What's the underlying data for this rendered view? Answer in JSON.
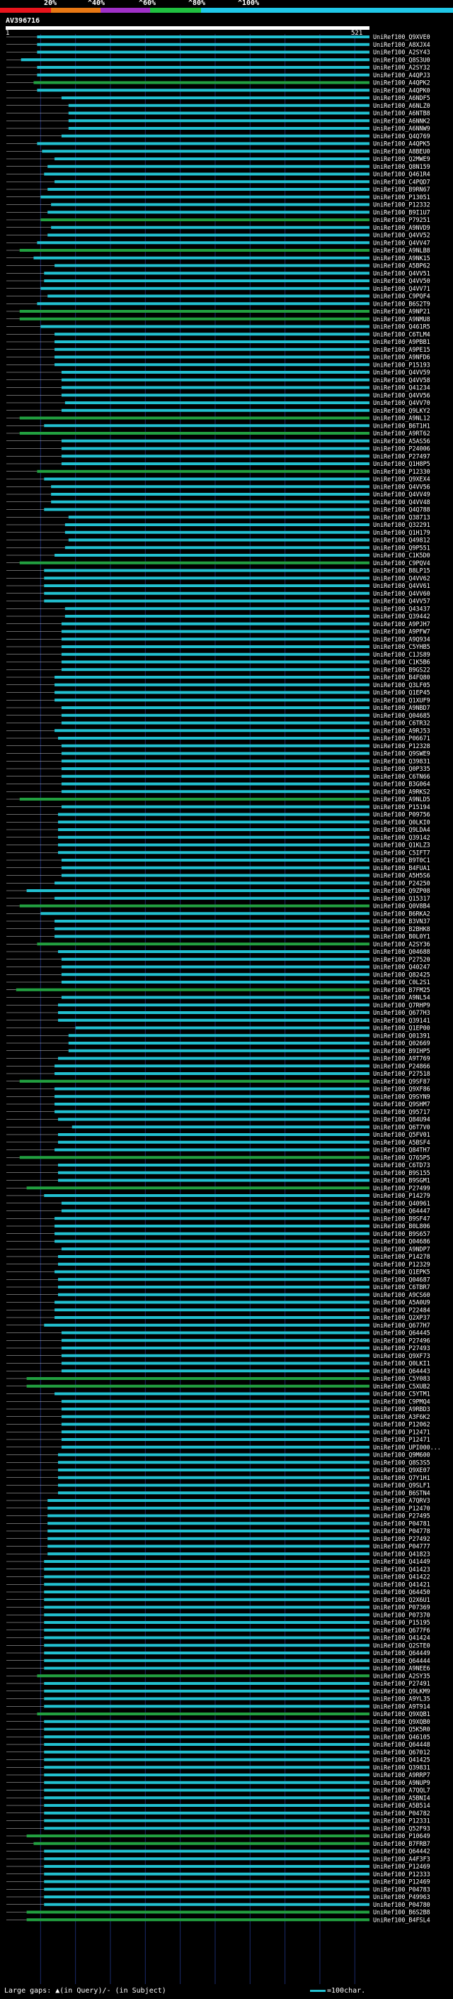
{
  "legend": {
    "labels": [
      "20%",
      "^40%",
      "^60%",
      "^80%",
      "^100%"
    ],
    "colors": [
      "#e8141c",
      "#e87814",
      "#a030c8",
      "#20c040",
      "#20c8e8"
    ]
  },
  "query": {
    "title": "AV396716",
    "start": "1",
    "end": "521",
    "length": 521
  },
  "colors": {
    "high": "#22c0d0",
    "mid": "#22a040",
    "line": "#d0d0d0",
    "text": "#ffffff"
  },
  "hits": [
    [
      "UniRef100_Q9XVE0",
      45,
      521,
      "c"
    ],
    [
      "UniRef100_A8XJX4",
      45,
      521,
      "c"
    ],
    [
      "UniRef100_A2SY43",
      45,
      521,
      "c"
    ],
    [
      "UniRef100_Q8S3U0",
      22,
      521,
      "c"
    ],
    [
      "UniRef100_A2SY32",
      45,
      521,
      "c"
    ],
    [
      "UniRef100_A4QPJ3",
      45,
      521,
      "c"
    ],
    [
      "UniRef100_A4QPK2",
      40,
      521,
      "g"
    ],
    [
      "UniRef100_A4QPK0",
      45,
      521,
      "c"
    ],
    [
      "UniRef100_A6NDF5",
      80,
      521,
      "c"
    ],
    [
      "UniRef100_A6NLZ0",
      90,
      521,
      "c"
    ],
    [
      "UniRef100_A6NTB8",
      90,
      521,
      "c"
    ],
    [
      "UniRef100_A6NNK2",
      90,
      521,
      "c"
    ],
    [
      "UniRef100_A6NNW9",
      90,
      521,
      "c"
    ],
    [
      "UniRef100_Q4Q769",
      80,
      521,
      "c"
    ],
    [
      "UniRef100_A4QPK5",
      45,
      521,
      "c"
    ],
    [
      "UniRef100_A8BEU0",
      52,
      521,
      "c"
    ],
    [
      "UniRef100_Q2MWE9",
      70,
      521,
      "c"
    ],
    [
      "UniRef100_Q8N159",
      60,
      521,
      "c"
    ],
    [
      "UniRef100_Q461R4",
      55,
      521,
      "c"
    ],
    [
      "UniRef100_C4PQD7",
      70,
      521,
      "c"
    ],
    [
      "UniRef100_B9RN67",
      60,
      521,
      "c"
    ],
    [
      "UniRef100_P13051",
      50,
      521,
      "c"
    ],
    [
      "UniRef100_P12332",
      65,
      521,
      "c"
    ],
    [
      "UniRef100_B9I1U7",
      60,
      521,
      "c"
    ],
    [
      "UniRef100_P79251",
      50,
      521,
      "g"
    ],
    [
      "UniRef100_A9NVD9",
      65,
      521,
      "c"
    ],
    [
      "UniRef100_Q4VV52",
      60,
      521,
      "c"
    ],
    [
      "UniRef100_Q4VV47",
      45,
      521,
      "c"
    ],
    [
      "UniRef100_A9NLB8",
      20,
      521,
      "g"
    ],
    [
      "UniRef100_A9NK15",
      40,
      521,
      "c"
    ],
    [
      "UniRef100_A5BP62",
      70,
      521,
      "c"
    ],
    [
      "UniRef100_Q4VV51",
      55,
      521,
      "c"
    ],
    [
      "UniRef100_Q4VV50",
      55,
      521,
      "c"
    ],
    [
      "UniRef100_Q4VV71",
      50,
      521,
      "c"
    ],
    [
      "UniRef100_C9PQF4",
      60,
      521,
      "c"
    ],
    [
      "UniRef100_B6S2T9",
      45,
      521,
      "c"
    ],
    [
      "UniRef100_A9NP21",
      20,
      521,
      "g"
    ],
    [
      "UniRef100_A9NMU8",
      20,
      521,
      "g"
    ],
    [
      "UniRef100_Q461R5",
      50,
      521,
      "c"
    ],
    [
      "UniRef100_C6TLM4",
      70,
      521,
      "c"
    ],
    [
      "UniRef100_A9PBB1",
      70,
      521,
      "c"
    ],
    [
      "UniRef100_A9PE15",
      70,
      521,
      "c"
    ],
    [
      "UniRef100_A9NFD6",
      70,
      521,
      "c"
    ],
    [
      "UniRef100_P15193",
      70,
      521,
      "c"
    ],
    [
      "UniRef100_Q4VV59",
      80,
      521,
      "c"
    ],
    [
      "UniRef100_Q4VV58",
      80,
      521,
      "c"
    ],
    [
      "UniRef100_Q41234",
      80,
      521,
      "c"
    ],
    [
      "UniRef100_Q4VV56",
      80,
      521,
      "c"
    ],
    [
      "UniRef100_Q4VV70",
      85,
      521,
      "c"
    ],
    [
      "UniRef100_Q9LKY2",
      80,
      521,
      "c"
    ],
    [
      "UniRef100_A9NL12",
      20,
      521,
      "g"
    ],
    [
      "UniRef100_B6T1H1",
      55,
      521,
      "c"
    ],
    [
      "UniRef100_A9RT62",
      20,
      521,
      "g"
    ],
    [
      "UniRef100_A5AS56",
      80,
      521,
      "c"
    ],
    [
      "UniRef100_P24006",
      80,
      521,
      "c"
    ],
    [
      "UniRef100_P27497",
      80,
      521,
      "c"
    ],
    [
      "UniRef100_Q1H8P5",
      80,
      521,
      "c"
    ],
    [
      "UniRef100_P12330",
      45,
      521,
      "g"
    ],
    [
      "UniRef100_Q9XEX4",
      55,
      521,
      "c"
    ],
    [
      "UniRef100_Q4VV56",
      65,
      521,
      "c"
    ],
    [
      "UniRef100_Q4VV49",
      65,
      521,
      "c"
    ],
    [
      "UniRef100_Q4VV48",
      65,
      521,
      "c"
    ],
    [
      "UniRef100_Q4Q788",
      55,
      521,
      "c"
    ],
    [
      "UniRef100_Q38713",
      90,
      521,
      "c"
    ],
    [
      "UniRef100_Q32291",
      85,
      521,
      "c"
    ],
    [
      "UniRef100_Q1H179",
      85,
      521,
      "c"
    ],
    [
      "UniRef100_Q49812",
      90,
      521,
      "c"
    ],
    [
      "UniRef100_Q9P551",
      85,
      521,
      "c"
    ],
    [
      "UniRef100_C1K5D0",
      70,
      521,
      "c"
    ],
    [
      "UniRef100_C9PQV4",
      20,
      521,
      "g"
    ],
    [
      "UniRef100_B8LP15",
      55,
      521,
      "c"
    ],
    [
      "UniRef100_Q4VV62",
      55,
      521,
      "c"
    ],
    [
      "UniRef100_Q4VV61",
      55,
      521,
      "c"
    ],
    [
      "UniRef100_Q4VV60",
      55,
      521,
      "c"
    ],
    [
      "UniRef100_Q4VV57",
      55,
      521,
      "c"
    ],
    [
      "UniRef100_Q43437",
      85,
      521,
      "c"
    ],
    [
      "UniRef100_Q39442",
      85,
      521,
      "c"
    ],
    [
      "UniRef100_A9PJH7",
      80,
      521,
      "c"
    ],
    [
      "UniRef100_A9PFW7",
      80,
      521,
      "c"
    ],
    [
      "UniRef100_A9Q934",
      80,
      521,
      "c"
    ],
    [
      "UniRef100_C5YHB5",
      80,
      521,
      "c"
    ],
    [
      "UniRef100_C1JS89",
      80,
      521,
      "c"
    ],
    [
      "UniRef100_C1K5B6",
      80,
      521,
      "c"
    ],
    [
      "UniRef100_B9GS22",
      80,
      521,
      "c"
    ],
    [
      "UniRef100_B4FQ80",
      70,
      521,
      "c"
    ],
    [
      "UniRef100_Q3LF05",
      70,
      521,
      "c"
    ],
    [
      "UniRef100_Q1EP45",
      70,
      521,
      "c"
    ],
    [
      "UniRef100_Q1XUF9",
      70,
      521,
      "c"
    ],
    [
      "UniRef100_A9NBD7",
      80,
      521,
      "c"
    ],
    [
      "UniRef100_Q04685",
      80,
      521,
      "c"
    ],
    [
      "UniRef100_C6TR32",
      80,
      521,
      "c"
    ],
    [
      "UniRef100_A9RJ53",
      70,
      521,
      "c"
    ],
    [
      "UniRef100_P06671",
      75,
      521,
      "c"
    ],
    [
      "UniRef100_P12328",
      80,
      521,
      "c"
    ],
    [
      "UniRef100_Q9SWE9",
      80,
      521,
      "c"
    ],
    [
      "UniRef100_Q39831",
      80,
      521,
      "c"
    ],
    [
      "UniRef100_Q0P335",
      80,
      521,
      "c"
    ],
    [
      "UniRef100_C6TN66",
      80,
      521,
      "c"
    ],
    [
      "UniRef100_B3G064",
      80,
      521,
      "c"
    ],
    [
      "UniRef100_A9RKS2",
      80,
      521,
      "c"
    ],
    [
      "UniRef100_A9NLD5",
      20,
      521,
      "g"
    ],
    [
      "UniRef100_P15194",
      80,
      521,
      "c"
    ],
    [
      "UniRef100_P09756",
      75,
      521,
      "c"
    ],
    [
      "UniRef100_Q0LKI0",
      75,
      521,
      "c"
    ],
    [
      "UniRef100_Q9LDA4",
      75,
      521,
      "c"
    ],
    [
      "UniRef100_Q39142",
      75,
      521,
      "c"
    ],
    [
      "UniRef100_Q1KLZ3",
      75,
      521,
      "c"
    ],
    [
      "UniRef100_C5IFT7",
      75,
      521,
      "c"
    ],
    [
      "UniRef100_B9T0C1",
      80,
      521,
      "c"
    ],
    [
      "UniRef100_B4FUA1",
      80,
      521,
      "c"
    ],
    [
      "UniRef100_A5H5S6",
      80,
      521,
      "c"
    ],
    [
      "UniRef100_P24250",
      70,
      521,
      "c"
    ],
    [
      "UniRef100_Q9ZP08",
      30,
      521,
      "c"
    ],
    [
      "UniRef100_Q15317",
      70,
      521,
      "c"
    ],
    [
      "UniRef100_Q0V8B4",
      20,
      521,
      "g"
    ],
    [
      "UniRef100_B6RKA2",
      50,
      521,
      "c"
    ],
    [
      "UniRef100_B3VN37",
      70,
      521,
      "c"
    ],
    [
      "UniRef100_B2BHK8",
      70,
      521,
      "c"
    ],
    [
      "UniRef100_B0L0Y1",
      70,
      521,
      "c"
    ],
    [
      "UniRef100_A2SY36",
      45,
      521,
      "g"
    ],
    [
      "UniRef100_Q04688",
      75,
      521,
      "c"
    ],
    [
      "UniRef100_P27520",
      80,
      521,
      "c"
    ],
    [
      "UniRef100_Q40247",
      80,
      521,
      "c"
    ],
    [
      "UniRef100_Q82425",
      80,
      521,
      "c"
    ],
    [
      "UniRef100_C0L2S1",
      80,
      521,
      "c"
    ],
    [
      "UniRef100_B7FM25",
      15,
      521,
      "g"
    ],
    [
      "UniRef100_A9NL54",
      80,
      521,
      "c"
    ],
    [
      "UniRef100_Q7RHP9",
      75,
      521,
      "c"
    ],
    [
      "UniRef100_Q677H3",
      75,
      521,
      "c"
    ],
    [
      "UniRef100_Q39141",
      75,
      521,
      "c"
    ],
    [
      "UniRef100_Q1EP00",
      100,
      521,
      "c"
    ],
    [
      "UniRef100_Q01391",
      90,
      521,
      "c"
    ],
    [
      "UniRef100_Q02669",
      90,
      521,
      "c"
    ],
    [
      "UniRef100_B9IHP5",
      90,
      521,
      "c"
    ],
    [
      "UniRef100_A9T769",
      75,
      521,
      "c"
    ],
    [
      "UniRef100_P24866",
      70,
      521,
      "c"
    ],
    [
      "UniRef100_P27518",
      70,
      521,
      "c"
    ],
    [
      "UniRef100_Q9SF87",
      20,
      521,
      "g"
    ],
    [
      "UniRef100_Q9XF86",
      70,
      521,
      "c"
    ],
    [
      "UniRef100_Q9SYN9",
      70,
      521,
      "c"
    ],
    [
      "UniRef100_Q9SHM7",
      70,
      521,
      "c"
    ],
    [
      "UniRef100_Q95717",
      70,
      521,
      "c"
    ],
    [
      "UniRef100_Q84U94",
      75,
      521,
      "c"
    ],
    [
      "UniRef100_Q6T7V0",
      95,
      521,
      "c"
    ],
    [
      "UniRef100_Q5FV01",
      75,
      521,
      "c"
    ],
    [
      "UniRef100_A5BSF4",
      75,
      521,
      "c"
    ],
    [
      "UniRef100_Q84TH7",
      70,
      521,
      "c"
    ],
    [
      "UniRef100_Q765P5",
      20,
      521,
      "g"
    ],
    [
      "UniRef100_C6TD73",
      75,
      521,
      "c"
    ],
    [
      "UniRef100_B9S155",
      75,
      521,
      "c"
    ],
    [
      "UniRef100_B9SGM1",
      75,
      521,
      "c"
    ],
    [
      "UniRef100_P27499",
      30,
      521,
      "g"
    ],
    [
      "UniRef100_P14279",
      55,
      521,
      "c"
    ],
    [
      "UniRef100_Q40961",
      80,
      521,
      "c"
    ],
    [
      "UniRef100_Q64447",
      80,
      521,
      "c"
    ],
    [
      "UniRef100_B9SF47",
      70,
      521,
      "c"
    ],
    [
      "UniRef100_B0L806",
      70,
      521,
      "c"
    ],
    [
      "UniRef100_B9S657",
      70,
      521,
      "c"
    ],
    [
      "UniRef100_Q04686",
      70,
      521,
      "c"
    ],
    [
      "UniRef100_A9NDP7",
      80,
      521,
      "c"
    ],
    [
      "UniRef100_P14278",
      75,
      521,
      "c"
    ],
    [
      "UniRef100_P12329",
      75,
      521,
      "c"
    ],
    [
      "UniRef100_Q1EPK5",
      70,
      521,
      "c"
    ],
    [
      "UniRef100_Q04687",
      75,
      521,
      "c"
    ],
    [
      "UniRef100_C6TBR7",
      75,
      521,
      "c"
    ],
    [
      "UniRef100_A9CS60",
      75,
      521,
      "c"
    ],
    [
      "UniRef100_A5A0U9",
      70,
      521,
      "c"
    ],
    [
      "UniRef100_P22484",
      70,
      521,
      "c"
    ],
    [
      "UniRef100_Q2XP37",
      70,
      521,
      "c"
    ],
    [
      "UniRef100_Q677H7",
      55,
      521,
      "c"
    ],
    [
      "UniRef100_Q64445",
      80,
      521,
      "c"
    ],
    [
      "UniRef100_P27496",
      80,
      521,
      "c"
    ],
    [
      "UniRef100_P27493",
      80,
      521,
      "c"
    ],
    [
      "UniRef100_Q9XF73",
      80,
      521,
      "c"
    ],
    [
      "UniRef100_Q0LKI1",
      80,
      521,
      "c"
    ],
    [
      "UniRef100_Q64443",
      80,
      521,
      "c"
    ],
    [
      "UniRef100_C5Y083",
      30,
      521,
      "g"
    ],
    [
      "UniRef100_C5XUB2",
      30,
      521,
      "g"
    ],
    [
      "UniRef100_C5YTM1",
      70,
      521,
      "c"
    ],
    [
      "UniRef100_C9PMQ4",
      80,
      521,
      "c"
    ],
    [
      "UniRef100_A9RBD3",
      80,
      521,
      "c"
    ],
    [
      "UniRef100_A3F6K2",
      80,
      521,
      "c"
    ],
    [
      "UniRef100_P12062",
      80,
      521,
      "c"
    ],
    [
      "UniRef100_P12471",
      80,
      521,
      "c"
    ],
    [
      "UniRef100_P12471",
      80,
      521,
      "c"
    ],
    [
      "UniRef100_UPI000...",
      80,
      521,
      "c"
    ],
    [
      "UniRef100_Q9M600",
      75,
      521,
      "c"
    ],
    [
      "UniRef100_Q8S3S5",
      75,
      521,
      "c"
    ],
    [
      "UniRef100_Q9XE07",
      75,
      521,
      "c"
    ],
    [
      "UniRef100_Q7Y1H1",
      75,
      521,
      "c"
    ],
    [
      "UniRef100_Q9SLF1",
      75,
      521,
      "c"
    ],
    [
      "UniRef100_B6STN4",
      75,
      521,
      "c"
    ],
    [
      "UniRef100_A7QRV3",
      60,
      521,
      "c"
    ],
    [
      "UniRef100_P12470",
      60,
      521,
      "c"
    ],
    [
      "UniRef100_P27495",
      60,
      521,
      "c"
    ],
    [
      "UniRef100_P04781",
      60,
      521,
      "c"
    ],
    [
      "UniRef100_P04778",
      60,
      521,
      "c"
    ],
    [
      "UniRef100_P27492",
      60,
      521,
      "c"
    ],
    [
      "UniRef100_P04777",
      60,
      521,
      "c"
    ],
    [
      "UniRef100_Q41823",
      60,
      521,
      "c"
    ],
    [
      "UniRef100_Q41449",
      55,
      521,
      "c"
    ],
    [
      "UniRef100_Q41423",
      55,
      521,
      "c"
    ],
    [
      "UniRef100_Q41422",
      55,
      521,
      "c"
    ],
    [
      "UniRef100_Q41421",
      55,
      521,
      "c"
    ],
    [
      "UniRef100_Q64450",
      55,
      521,
      "c"
    ],
    [
      "UniRef100_Q2X6U1",
      55,
      521,
      "c"
    ],
    [
      "UniRef100_P07369",
      55,
      521,
      "c"
    ],
    [
      "UniRef100_P07370",
      55,
      521,
      "c"
    ],
    [
      "UniRef100_P15195",
      55,
      521,
      "c"
    ],
    [
      "UniRef100_Q677F6",
      55,
      521,
      "c"
    ],
    [
      "UniRef100_Q41424",
      55,
      521,
      "c"
    ],
    [
      "UniRef100_Q2STE0",
      55,
      521,
      "c"
    ],
    [
      "UniRef100_Q64449",
      55,
      521,
      "c"
    ],
    [
      "UniRef100_Q64444",
      55,
      521,
      "c"
    ],
    [
      "UniRef100_A9NEE6",
      55,
      521,
      "c"
    ],
    [
      "UniRef100_A2SY35",
      45,
      521,
      "g"
    ],
    [
      "UniRef100_P27491",
      55,
      521,
      "c"
    ],
    [
      "UniRef100_Q9LKM9",
      55,
      521,
      "c"
    ],
    [
      "UniRef100_A9YL35",
      55,
      521,
      "c"
    ],
    [
      "UniRef100_A9T914",
      55,
      521,
      "c"
    ],
    [
      "UniRef100_Q9XQB1",
      45,
      521,
      "g"
    ],
    [
      "UniRef100_Q9XQB0",
      55,
      521,
      "c"
    ],
    [
      "UniRef100_Q5K5R0",
      55,
      521,
      "c"
    ],
    [
      "UniRef100_Q46105",
      55,
      521,
      "c"
    ],
    [
      "UniRef100_Q64448",
      55,
      521,
      "c"
    ],
    [
      "UniRef100_Q67012",
      55,
      521,
      "c"
    ],
    [
      "UniRef100_Q41425",
      55,
      521,
      "c"
    ],
    [
      "UniRef100_Q39831",
      55,
      521,
      "c"
    ],
    [
      "UniRef100_A9RRP7",
      55,
      521,
      "c"
    ],
    [
      "UniRef100_A9NUP9",
      55,
      521,
      "c"
    ],
    [
      "UniRef100_A7QQL7",
      55,
      521,
      "c"
    ],
    [
      "UniRef100_A5BNI4",
      55,
      521,
      "c"
    ],
    [
      "UniRef100_A5B514",
      55,
      521,
      "c"
    ],
    [
      "UniRef100_P04782",
      55,
      521,
      "c"
    ],
    [
      "UniRef100_P12331",
      55,
      521,
      "c"
    ],
    [
      "UniRef100_Q52F93",
      55,
      521,
      "c"
    ],
    [
      "UniRef100_P10649",
      30,
      521,
      "g"
    ],
    [
      "UniRef100_B7FRB7",
      40,
      521,
      "g"
    ],
    [
      "UniRef100_Q64442",
      55,
      521,
      "c"
    ],
    [
      "UniRef100_A4F3F3",
      55,
      521,
      "c"
    ],
    [
      "UniRef100_P12469",
      55,
      521,
      "c"
    ],
    [
      "UniRef100_P12333",
      55,
      521,
      "c"
    ],
    [
      "UniRef100_P12469",
      55,
      521,
      "c"
    ],
    [
      "UniRef100_P04783",
      55,
      521,
      "c"
    ],
    [
      "UniRef100_P49963",
      55,
      521,
      "c"
    ],
    [
      "UniRef100_P04780",
      55,
      521,
      "c"
    ],
    [
      "UniRef100_B6S2B8",
      30,
      521,
      "g"
    ],
    [
      "UniRef100_B4FSL4",
      30,
      521,
      "g"
    ]
  ],
  "footer": {
    "text": "Large gaps: ▲(in Query)/- (in Subject)",
    "scale": "=100char."
  }
}
